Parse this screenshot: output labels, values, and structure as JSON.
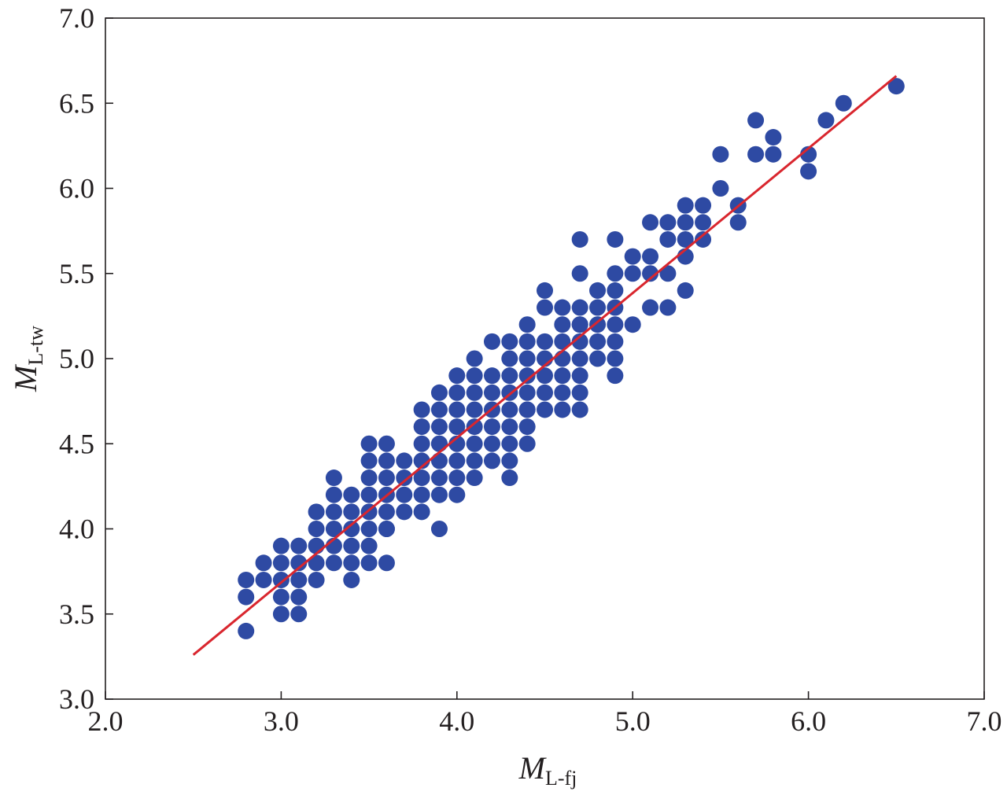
{
  "chart_data": {
    "type": "scatter",
    "title": "",
    "xlabel": {
      "main": "M",
      "sub": "L-fj"
    },
    "ylabel": {
      "main": "M",
      "sub": "L-tw"
    },
    "xlim": [
      2.0,
      7.0
    ],
    "ylim": [
      3.0,
      7.0
    ],
    "x_ticks": [
      "2.0",
      "3.0",
      "4.0",
      "5.0",
      "6.0",
      "7.0"
    ],
    "y_ticks": [
      "3.0",
      "3.5",
      "4.0",
      "4.5",
      "5.0",
      "5.5",
      "6.0",
      "6.5",
      "7.0"
    ],
    "grid": false,
    "legend": "none",
    "colors": {
      "points": "#2e4aa3",
      "fit_line": "#d9262e",
      "axes": "#231f20"
    },
    "series": [
      {
        "kind": "points",
        "x": [
          2.8,
          2.8,
          2.8,
          2.9,
          2.9,
          3.0,
          3.0,
          3.0,
          3.0,
          3.0,
          3.1,
          3.1,
          3.1,
          3.1,
          3.1,
          3.2,
          3.2,
          3.2,
          3.2,
          3.2,
          3.3,
          3.3,
          3.3,
          3.3,
          3.3,
          3.3,
          3.4,
          3.4,
          3.4,
          3.4,
          3.4,
          3.4,
          3.5,
          3.5,
          3.5,
          3.5,
          3.5,
          3.5,
          3.5,
          3.5,
          3.6,
          3.6,
          3.6,
          3.6,
          3.6,
          3.6,
          3.6,
          3.6,
          3.7,
          3.7,
          3.7,
          3.7,
          3.8,
          3.8,
          3.8,
          3.8,
          3.8,
          3.8,
          3.8,
          3.9,
          3.9,
          3.9,
          3.9,
          3.9,
          3.9,
          3.9,
          3.9,
          3.9,
          4.0,
          4.0,
          4.0,
          4.0,
          4.0,
          4.0,
          4.0,
          4.0,
          4.1,
          4.1,
          4.1,
          4.1,
          4.1,
          4.1,
          4.1,
          4.1,
          4.2,
          4.2,
          4.2,
          4.2,
          4.2,
          4.2,
          4.2,
          4.3,
          4.3,
          4.3,
          4.3,
          4.3,
          4.3,
          4.3,
          4.3,
          4.3,
          4.4,
          4.4,
          4.4,
          4.4,
          4.4,
          4.4,
          4.4,
          4.4,
          4.4,
          4.5,
          4.5,
          4.5,
          4.5,
          4.5,
          4.5,
          4.5,
          4.6,
          4.6,
          4.6,
          4.6,
          4.6,
          4.6,
          4.6,
          4.7,
          4.7,
          4.7,
          4.7,
          4.7,
          4.7,
          4.7,
          4.7,
          4.7,
          4.7,
          4.8,
          4.8,
          4.8,
          4.8,
          4.8,
          4.9,
          4.9,
          4.9,
          4.9,
          4.9,
          4.9,
          4.9,
          4.9,
          5.0,
          5.0,
          5.0,
          5.1,
          5.1,
          5.1,
          5.1,
          5.2,
          5.2,
          5.2,
          5.2,
          5.3,
          5.3,
          5.3,
          5.3,
          5.3,
          5.4,
          5.4,
          5.4,
          5.5,
          5.5,
          5.6,
          5.6,
          5.7,
          5.7,
          5.8,
          5.8,
          6.0,
          6.0,
          6.1,
          6.2,
          6.5
        ],
        "y": [
          3.7,
          3.6,
          3.4,
          3.8,
          3.7,
          3.9,
          3.8,
          3.7,
          3.6,
          3.5,
          3.9,
          3.8,
          3.7,
          3.6,
          3.5,
          4.1,
          4.0,
          3.9,
          3.8,
          3.7,
          4.3,
          4.2,
          4.1,
          4.0,
          3.9,
          3.8,
          4.2,
          4.1,
          4.0,
          3.9,
          3.8,
          3.7,
          4.5,
          4.4,
          4.3,
          4.2,
          4.1,
          4.0,
          3.9,
          3.8,
          4.5,
          4.4,
          4.3,
          4.2,
          4.1,
          4.0,
          4.0,
          3.8,
          4.4,
          4.3,
          4.2,
          4.1,
          4.7,
          4.6,
          4.5,
          4.4,
          4.3,
          4.2,
          4.1,
          4.8,
          4.7,
          4.6,
          4.5,
          4.4,
          4.3,
          4.2,
          4.0,
          4.5,
          4.9,
          4.8,
          4.7,
          4.6,
          4.5,
          4.4,
          4.3,
          4.2,
          5.0,
          4.9,
          4.8,
          4.7,
          4.6,
          4.5,
          4.4,
          4.3,
          5.1,
          4.9,
          4.8,
          4.7,
          4.6,
          4.5,
          4.4,
          5.1,
          5.0,
          4.9,
          4.8,
          4.7,
          4.6,
          4.5,
          4.4,
          4.3,
          5.2,
          5.1,
          5.0,
          4.9,
          4.8,
          4.7,
          4.6,
          4.5,
          4.7,
          5.4,
          5.3,
          5.1,
          5.0,
          4.9,
          4.8,
          4.7,
          5.3,
          5.2,
          5.1,
          5.0,
          4.9,
          4.8,
          4.7,
          5.7,
          5.5,
          5.3,
          5.2,
          5.1,
          5.0,
          4.9,
          4.8,
          4.7,
          5.2,
          5.4,
          5.3,
          5.1,
          5.0,
          5.2,
          5.7,
          5.5,
          5.4,
          5.3,
          5.2,
          5.1,
          5.0,
          4.9,
          5.6,
          5.5,
          5.2,
          5.8,
          5.6,
          5.5,
          5.3,
          5.8,
          5.7,
          5.5,
          5.3,
          5.9,
          5.8,
          5.7,
          5.6,
          5.4,
          5.9,
          5.8,
          5.7,
          6.2,
          6.0,
          5.9,
          5.8,
          6.4,
          6.2,
          6.3,
          6.2,
          6.2,
          6.1,
          6.4,
          6.5,
          6.6
        ]
      },
      {
        "kind": "fit_line",
        "x": [
          2.5,
          6.5
        ],
        "y": [
          3.26,
          6.66
        ]
      }
    ]
  }
}
